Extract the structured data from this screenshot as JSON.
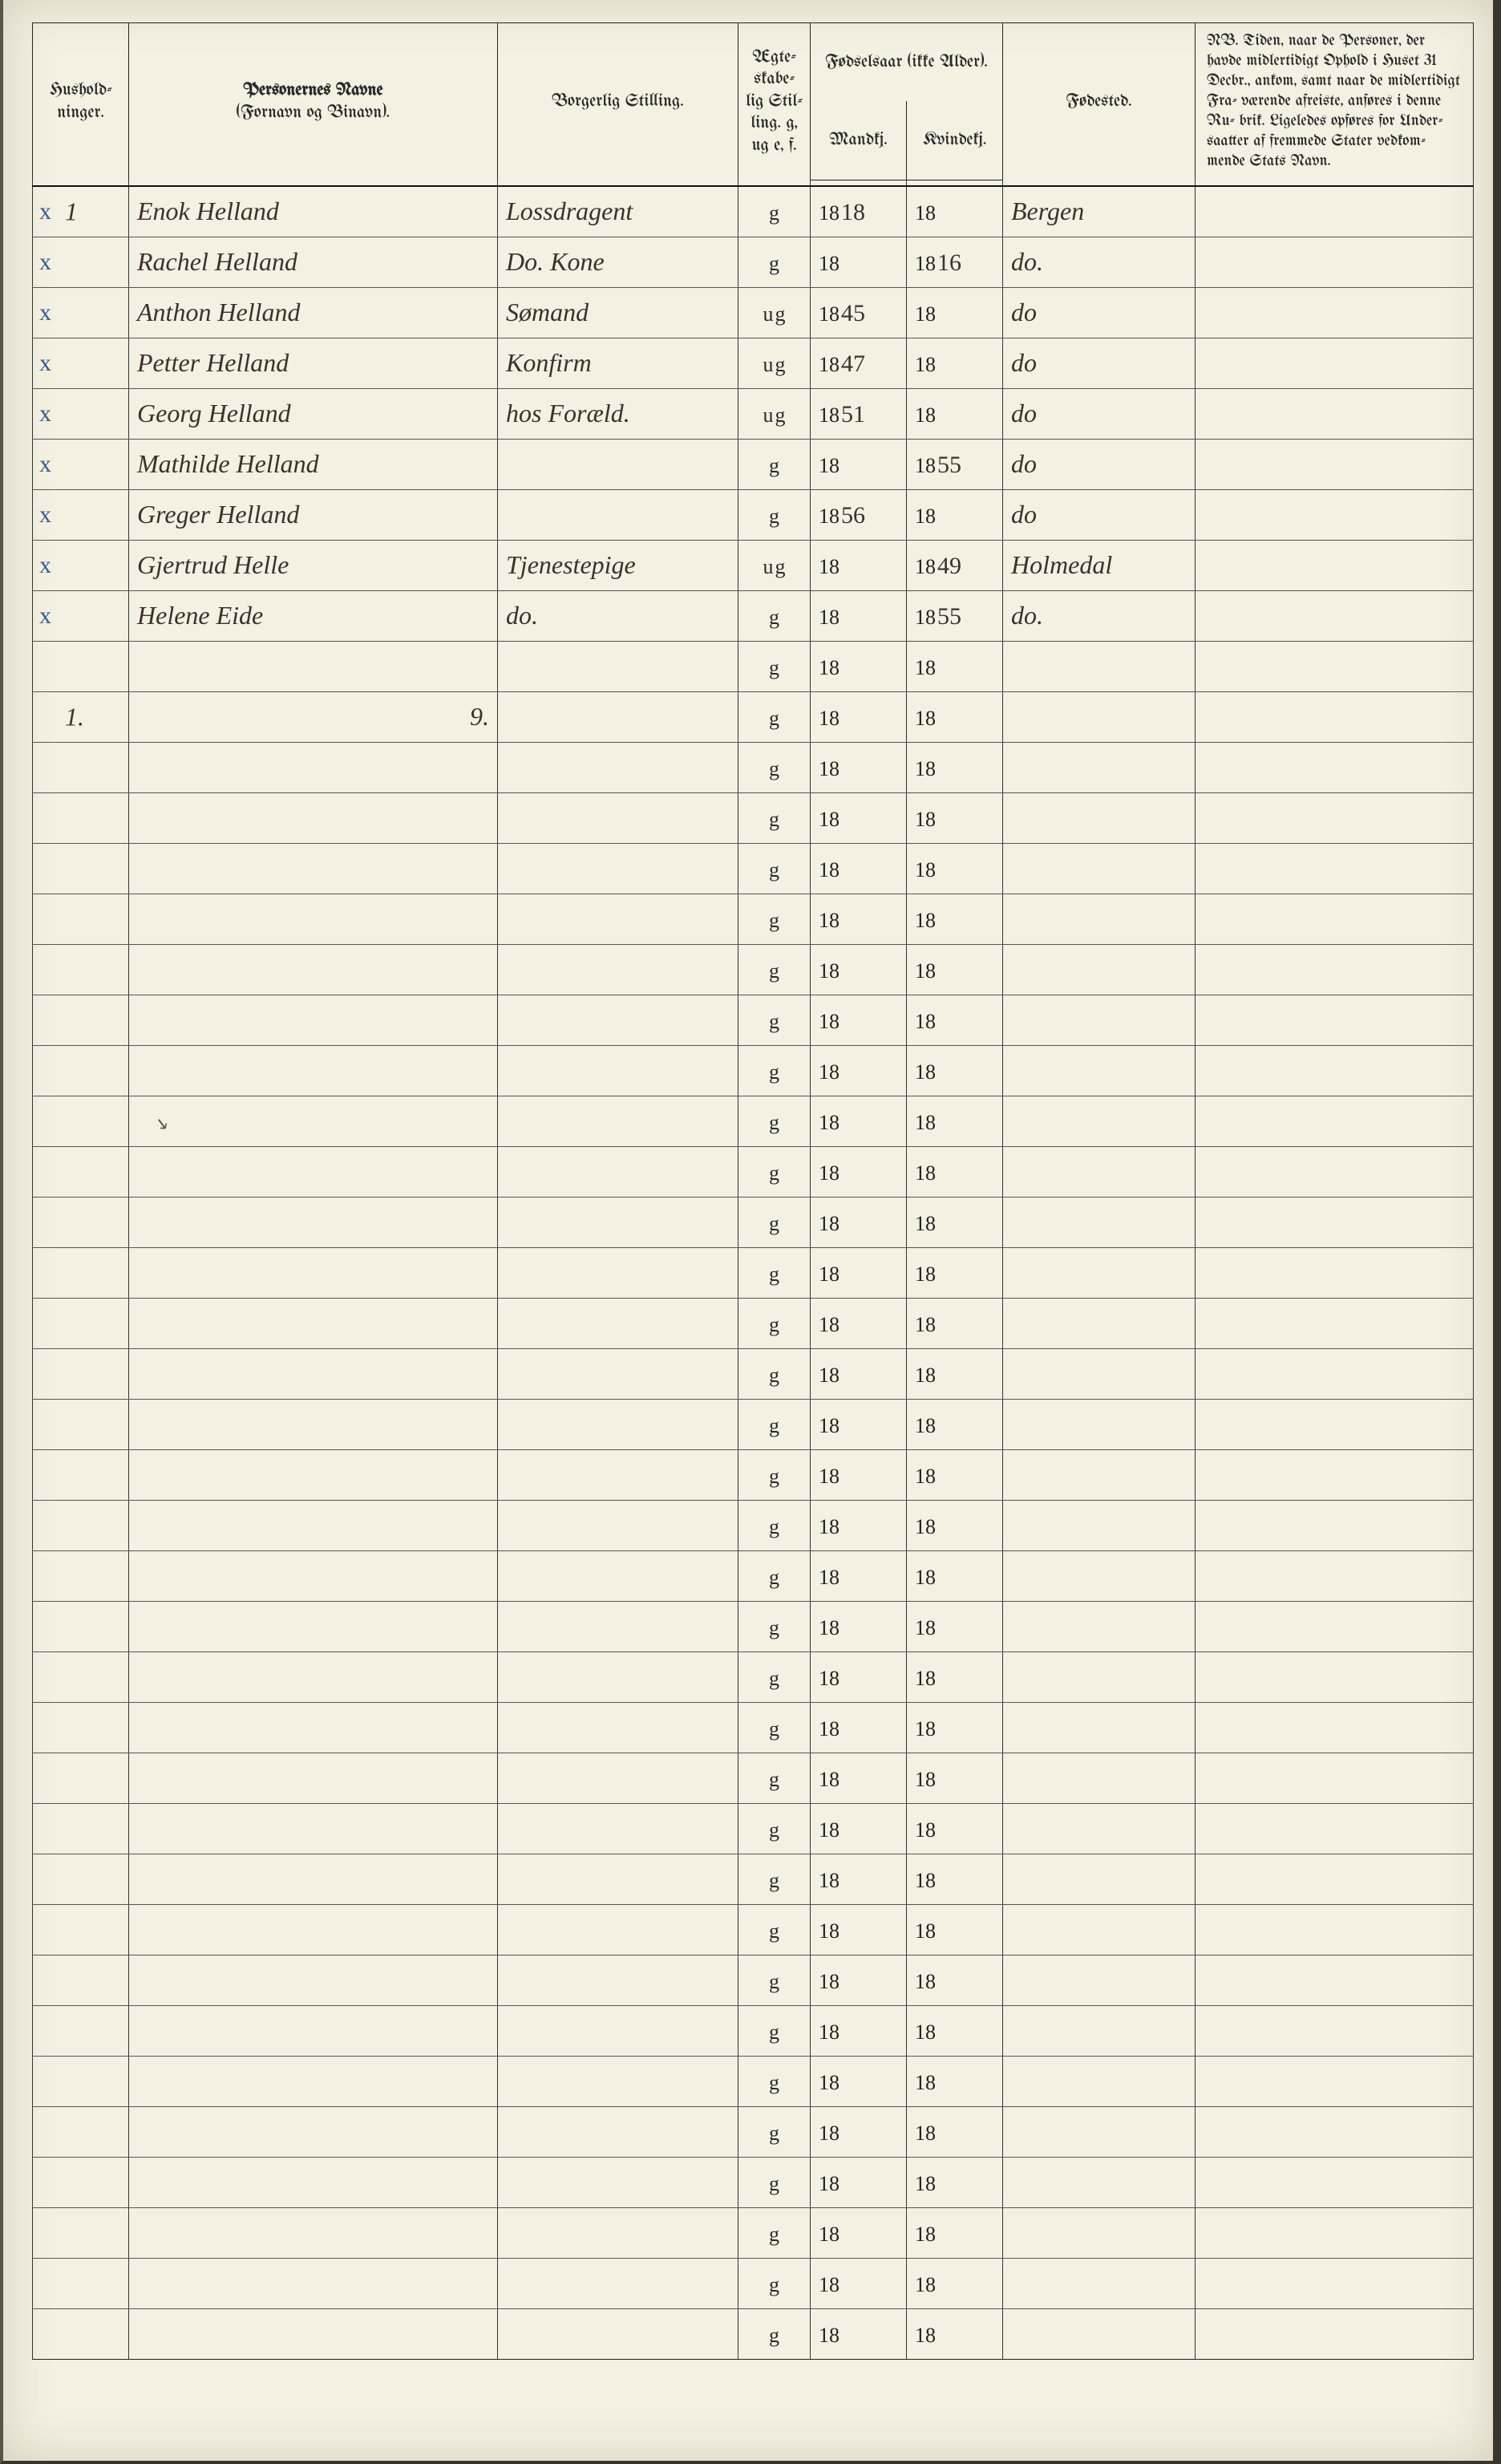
{
  "header": {
    "husholdninger": "Hushold-\nninger.",
    "navne_title": "Personernes Navne",
    "navne_sub": "(Fornavn og Binavn).",
    "stilling": "Borgerlig Stilling.",
    "egt": "Ægte-\nskabe-\nlig\nStil-\nling.\ng, ug\ne, f.",
    "fodselsaar": "Fødselsaar\n(ikke Alder).",
    "mandkj": "Mandkj.",
    "kvindekj": "Kvindekj.",
    "fodested": "Fødested.",
    "nb": "NB. Tiden, naar de Personer, der havde midlertidigt Ophold i Huset 31 Decbr., ankom, samt naar de midlertidigt Fra- værende afreiste, anføres i denne Ru- brik. Ligeledes opføres for Under- saatter af fremmede Stater vedkom- mende Stats Navn."
  },
  "printed": {
    "year_prefix": "18",
    "g": "g"
  },
  "summary": {
    "hush": "1.",
    "count": "9."
  },
  "rows": [
    {
      "x": true,
      "hush": "1",
      "navn": "Enok Helland",
      "stilling": "Lossdragent",
      "egt_prefix": "",
      "mand_suf": "18",
      "kvind_suf": "",
      "fodested": "Bergen"
    },
    {
      "x": true,
      "hush": "",
      "navn": "Rachel Helland",
      "stilling": "Do. Kone",
      "egt_prefix": "",
      "mand_suf": "",
      "kvind_suf": "16",
      "fodested": "do."
    },
    {
      "x": true,
      "hush": "",
      "navn": "Anthon Helland",
      "stilling": "Sømand",
      "egt_prefix": "u",
      "mand_suf": "45",
      "kvind_suf": "",
      "fodested": "do"
    },
    {
      "x": true,
      "hush": "",
      "navn": "Petter Helland",
      "stilling": "Konfirm",
      "egt_prefix": "u",
      "mand_suf": "47",
      "kvind_suf": "",
      "fodested": "do"
    },
    {
      "x": true,
      "hush": "",
      "navn": "Georg Helland",
      "stilling": "hos Foræld.",
      "egt_prefix": "u",
      "mand_suf": "51",
      "kvind_suf": "",
      "fodested": "do"
    },
    {
      "x": true,
      "hush": "",
      "navn": "Mathilde Helland",
      "stilling": "",
      "egt_prefix": "",
      "mand_suf": "",
      "kvind_suf": "55",
      "fodested": "do"
    },
    {
      "x": true,
      "hush": "",
      "navn": "Greger Helland",
      "stilling": "",
      "egt_prefix": "",
      "mand_suf": "56",
      "kvind_suf": "",
      "fodested": "do"
    },
    {
      "x": true,
      "hush": "",
      "navn": "Gjertrud Helle",
      "stilling": "Tjenestepige",
      "egt_prefix": "u",
      "mand_suf": "",
      "kvind_suf": "49",
      "fodested": "Holmedal"
    },
    {
      "x": true,
      "hush": "",
      "navn": "Helene Eide",
      "stilling": "do.",
      "egt_prefix": "",
      "mand_suf": "",
      "kvind_suf": "55",
      "fodested": "do."
    }
  ],
  "blank_rows": 34,
  "smudge_row_index": 9,
  "colors": {
    "page_bg": "#f4f0e2",
    "ink": "#2a2a2a",
    "hand_ink": "#3b322a",
    "x_ink": "#3a5a8a",
    "rule": "#111111"
  }
}
